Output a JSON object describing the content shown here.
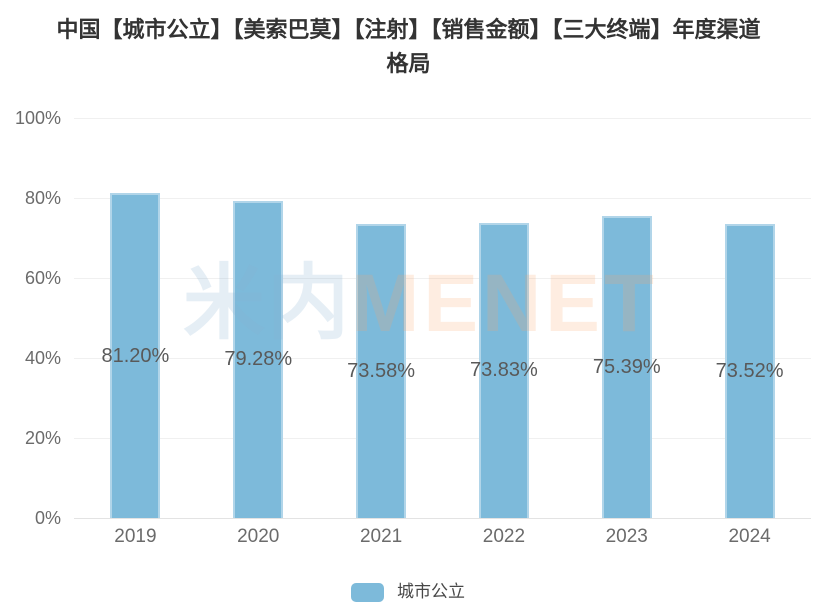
{
  "title": "中国【城市公立】【美索巴莫】【注射】【销售金额】【三大终端】年度渠道格局",
  "title_lines": [
    "中国【城市公立】【美索巴莫】【注射】【销售金额】【三大终端】年度渠道",
    "格局"
  ],
  "watermark": {
    "cjk": "米内",
    "latin": "MENET"
  },
  "colors": {
    "bar": "#7dbada",
    "title": "#333333",
    "axis_label": "#6b6b6b",
    "data_label": "#595959",
    "gridline": "#f0f0f0",
    "axis_line": "#e3e3e3",
    "watermark_cjk": "rgba(137,178,211,0.22)",
    "watermark_latin": "rgba(248,166,106,0.20)"
  },
  "chart_data": {
    "type": "bar",
    "title": "中国【城市公立】【美索巴莫】【注射】【销售金额】【三大终端】年度渠道格局",
    "categories": [
      "2019",
      "2020",
      "2021",
      "2022",
      "2023",
      "2024"
    ],
    "series": [
      {
        "name": "城市公立",
        "values": [
          81.2,
          79.28,
          73.58,
          73.83,
          75.39,
          73.52
        ],
        "color": "#7dbada"
      }
    ],
    "value_labels": [
      "81.20%",
      "79.28%",
      "73.58%",
      "73.83%",
      "75.39%",
      "73.52%"
    ],
    "xlabel": "",
    "ylabel": "",
    "ylim": [
      0,
      100
    ],
    "yticks": [
      "0%",
      "20%",
      "40%",
      "60%",
      "80%",
      "100%"
    ],
    "grid": true,
    "legend_position": "bottom"
  },
  "legend": {
    "items": [
      {
        "label": "城市公立",
        "color": "#7dbada"
      }
    ]
  }
}
